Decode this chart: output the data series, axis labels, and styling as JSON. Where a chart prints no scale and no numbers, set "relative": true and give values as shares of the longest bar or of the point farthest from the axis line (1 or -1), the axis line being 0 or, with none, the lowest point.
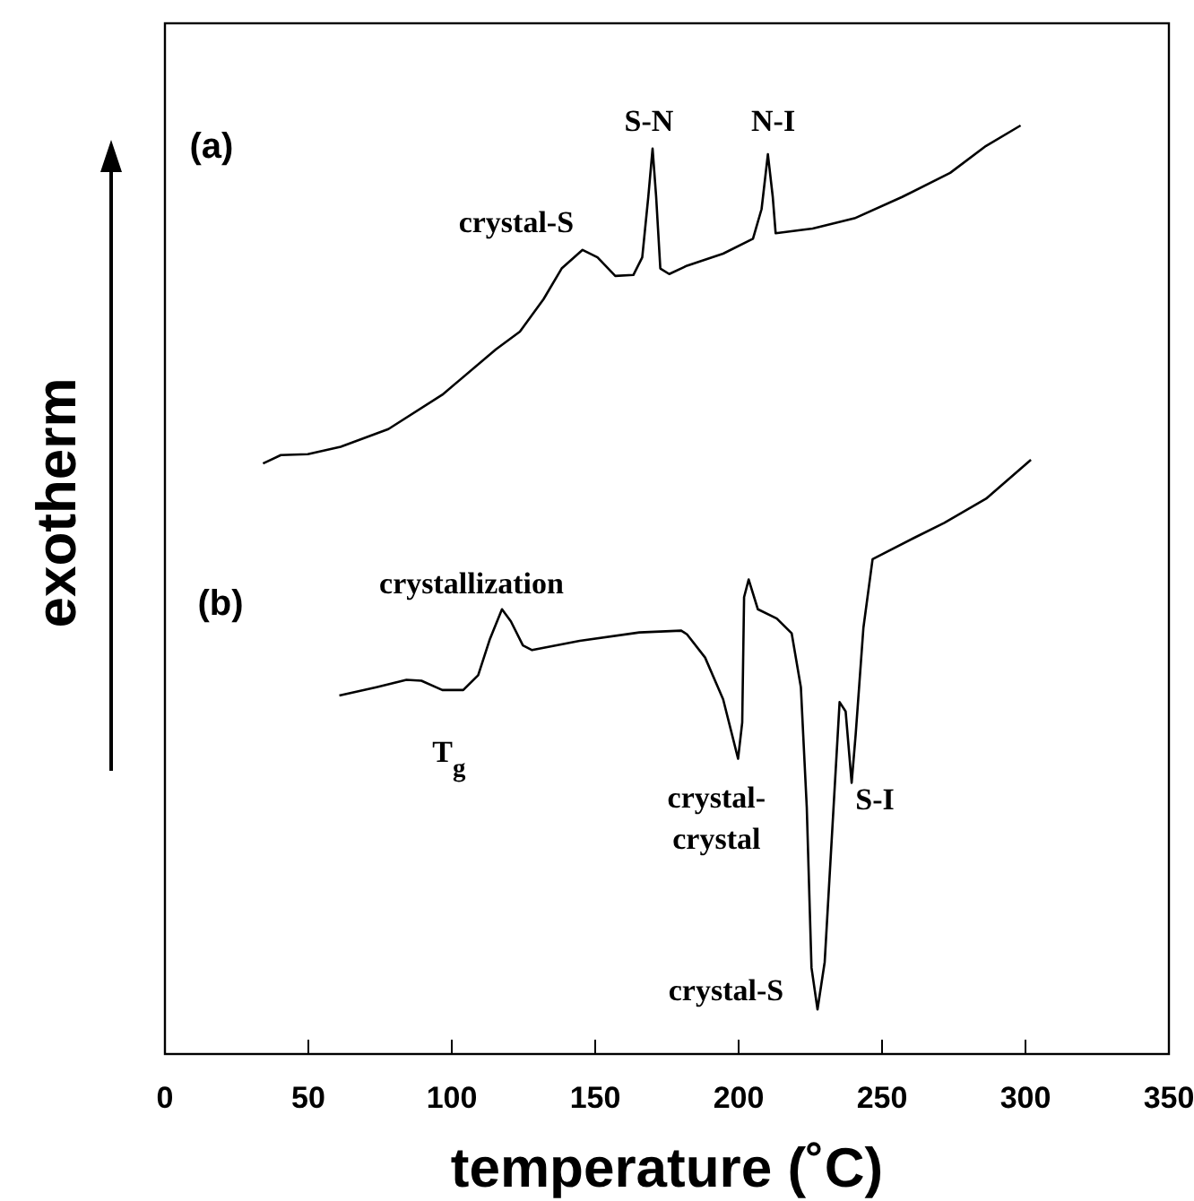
{
  "chart_data": {
    "type": "line",
    "relative": true,
    "xlabel": "temperature (˚C)",
    "ylabel": "exotherm",
    "xlim": [
      0,
      350
    ],
    "xticks": [
      0,
      50,
      100,
      150,
      200,
      250,
      300,
      350
    ],
    "grid": false,
    "marker": "none",
    "line_style": "solid",
    "series": [
      {
        "color": "#000000",
        "x": [
          34.2,
          40.4,
          49.8,
          61.25,
          77.9,
          96.7,
          115.4,
          123.75,
          132,
          138.3,
          145.6,
          150.8,
          157,
          163.3,
          166.4,
          168.5,
          170,
          171.25,
          172.7,
          175.8,
          182,
          194.6,
          205,
          208,
          210.2,
          211.9,
          212.9,
          225.8,
          240.4,
          257,
          273.75,
          286.25,
          298.3
        ],
        "values": [
          0.636,
          0.645,
          0.646,
          0.654,
          0.673,
          0.71,
          0.759,
          0.778,
          0.813,
          0.846,
          0.866,
          0.858,
          0.838,
          0.839,
          0.858,
          0.923,
          0.975,
          0.923,
          0.846,
          0.84,
          0.849,
          0.862,
          0.878,
          0.91,
          0.969,
          0.923,
          0.884,
          0.889,
          0.9,
          0.923,
          0.949,
          0.978,
          1.0
        ]
      },
      {
        "color": "#000000",
        "x": [
          60.8,
          73.75,
          84.2,
          89.4,
          96.7,
          104,
          109.2,
          113.3,
          117.5,
          120.6,
          124.8,
          128,
          144.6,
          165.4,
          180,
          182,
          188.3,
          194.6,
          197.7,
          199.8,
          201.25,
          201.9,
          203.5,
          206.7,
          213.3,
          218.5,
          221.7,
          223.75,
          225.4,
          227.5,
          230,
          233.1,
          235.2,
          237.3,
          239.4,
          240.8,
          243.5,
          246.7,
          261.25,
          271.7,
          286.25,
          301.9
        ],
        "values": [
          0.386,
          0.395,
          0.403,
          0.402,
          0.392,
          0.392,
          0.408,
          0.447,
          0.479,
          0.466,
          0.44,
          0.435,
          0.445,
          0.454,
          0.456,
          0.452,
          0.427,
          0.382,
          0.344,
          0.318,
          0.357,
          0.492,
          0.511,
          0.479,
          0.469,
          0.453,
          0.395,
          0.266,
          0.093,
          0.048,
          0.099,
          0.266,
          0.379,
          0.369,
          0.292,
          0.344,
          0.459,
          0.533,
          0.556,
          0.572,
          0.598,
          0.64
        ]
      }
    ],
    "annotations": [
      "(a)",
      "(b)",
      {
        "text": "crystal-S",
        "x": 145.6,
        "y": 0.866
      },
      {
        "text": "S-N",
        "x": 170,
        "y": 0.975
      },
      {
        "text": "N-I",
        "x": 210.2,
        "y": 0.969
      },
      {
        "text": "crystallization",
        "x": 117.5,
        "y": 0.479
      },
      {
        "text": "T$_{g}$",
        "x": 104,
        "y": 0.392
      },
      {
        "text": "crystal-\ncrystal",
        "x": 199.8,
        "y": 0.318
      },
      {
        "text": "S-I",
        "x": 239.4,
        "y": 0.292
      },
      {
        "text": "crystal-S",
        "x": 227.5,
        "y": 0.048
      }
    ]
  }
}
